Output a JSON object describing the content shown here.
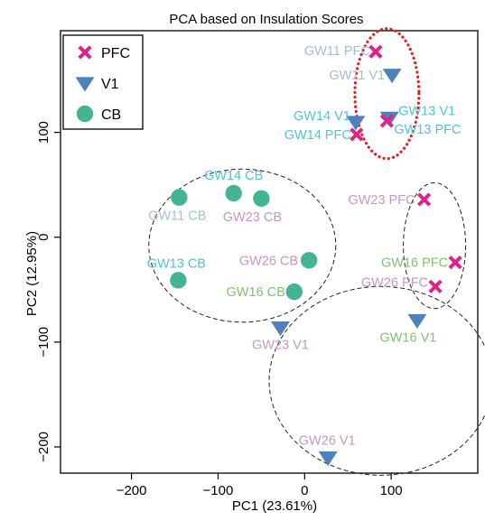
{
  "chart_data": {
    "type": "scatter",
    "title": "PCA based on Insulation Scores",
    "xlabel": "PC1 (23.61%)",
    "ylabel": "PC2 (12.95%)",
    "xlim": [
      -282,
      200
    ],
    "ylim": [
      -225,
      197
    ],
    "xticks": [
      -200,
      -100,
      0,
      100
    ],
    "yticks": [
      -200,
      -100,
      0,
      100
    ],
    "legend_position": "top-left",
    "legend": [
      {
        "marker": "x",
        "label": "PFC",
        "color": "#e0218a"
      },
      {
        "marker": "triangle",
        "label": "V1",
        "color": "#4f81bd"
      },
      {
        "marker": "circle",
        "label": "CB",
        "color": "#43b494"
      }
    ],
    "points": [
      {
        "label": "GW11 PFC",
        "marker": "x",
        "x": 82,
        "y": 177,
        "label_color": "#a7bdd6",
        "label_pos": "left",
        "dx": -6,
        "dy": 4
      },
      {
        "label": "GW11 V1",
        "marker": "triangle",
        "x": 101,
        "y": 155,
        "label_color": "#a7bdd6",
        "label_pos": "left",
        "dx": -8,
        "dy": 5
      },
      {
        "label": "GW14 V1",
        "marker": "triangle",
        "x": 59,
        "y": 110,
        "label_color": "#4fc5d2",
        "label_pos": "left",
        "dx": -6,
        "dy": -2
      },
      {
        "label": "GW14 PFC",
        "marker": "x",
        "x": 60,
        "y": 98,
        "label_color": "#4fc5d2",
        "label_pos": "left",
        "dx": -6,
        "dy": 5
      },
      {
        "label": "GW13 V1",
        "marker": "triangle",
        "x": 98,
        "y": 114,
        "label_color": "#4fc5d2",
        "label_pos": "right",
        "dx": 10,
        "dy": -3
      },
      {
        "label": "GW13 PFC",
        "marker": "x",
        "x": 95,
        "y": 111,
        "label_color": "#4fc5d2",
        "label_pos": "right",
        "dx": 8,
        "dy": 14
      },
      {
        "label": "GW23 PFC",
        "marker": "x",
        "x": 138,
        "y": 36,
        "label_color": "#c497c0",
        "label_pos": "left",
        "dx": -10,
        "dy": 5
      },
      {
        "label": "GW16 PFC",
        "marker": "x",
        "x": 174,
        "y": -24,
        "label_color": "#7dc469",
        "label_pos": "left",
        "dx": -8,
        "dy": 5
      },
      {
        "label": "GW26 PFC",
        "marker": "x",
        "x": 151,
        "y": -47,
        "label_color": "#c497c0",
        "label_pos": "left",
        "dx": -8,
        "dy": 0
      },
      {
        "label": "GW16 V1",
        "marker": "triangle",
        "x": 130,
        "y": -79,
        "label_color": "#7dc469",
        "label_pos": "center",
        "dx": -10,
        "dy": 24
      },
      {
        "label": "GW14 CB",
        "marker": "circle",
        "x": -82,
        "y": 42,
        "label_color": "#4fc5d2",
        "label_pos": "center",
        "dx": 0,
        "dy": -15
      },
      {
        "label": "GW23 CB",
        "marker": "circle",
        "x": -50,
        "y": 37,
        "label_color": "#c497c0",
        "label_pos": "center",
        "dx": -10,
        "dy": 25
      },
      {
        "label": "GW11 CB",
        "marker": "circle",
        "x": -145,
        "y": 38,
        "label_color": "#a7bdd6",
        "label_pos": "center",
        "dx": -2,
        "dy": 25
      },
      {
        "label": "GW26 CB",
        "marker": "circle",
        "x": 5,
        "y": -22,
        "label_color": "#c497c0",
        "label_pos": "left",
        "dx": -12,
        "dy": 5
      },
      {
        "label": "GW13 CB",
        "marker": "circle",
        "x": -146,
        "y": -41,
        "label_color": "#4fc5d2",
        "label_pos": "center",
        "dx": -2,
        "dy": -14
      },
      {
        "label": "GW16 CB",
        "marker": "circle",
        "x": -12,
        "y": -52,
        "label_color": "#7dc469",
        "label_pos": "left",
        "dx": -10,
        "dy": 5
      },
      {
        "label": "GW23 V1",
        "marker": "triangle",
        "x": -28,
        "y": -86,
        "label_color": "#c497c0",
        "label_pos": "center",
        "dx": 0,
        "dy": 24
      },
      {
        "label": "GW26 V1",
        "marker": "triangle",
        "x": 27,
        "y": -210,
        "label_color": "#c497c0",
        "label_pos": "center",
        "dx": -1,
        "dy": -14
      }
    ],
    "ellipses": [
      {
        "cx": 95,
        "cy": 137,
        "rx": 37,
        "ry": 62,
        "style": "dotted",
        "color": "#e02020"
      },
      {
        "cx": -72,
        "cy": -8,
        "rx": 108,
        "ry": 73,
        "style": "dashed",
        "color": "#222222"
      },
      {
        "cx": 150,
        "cy": -8,
        "rx": 36,
        "ry": 60,
        "style": "dashed",
        "color": "#222222"
      },
      {
        "cx": 88,
        "cy": -137,
        "rx": 129,
        "ry": 90,
        "style": "dashed",
        "color": "#222222"
      }
    ]
  }
}
